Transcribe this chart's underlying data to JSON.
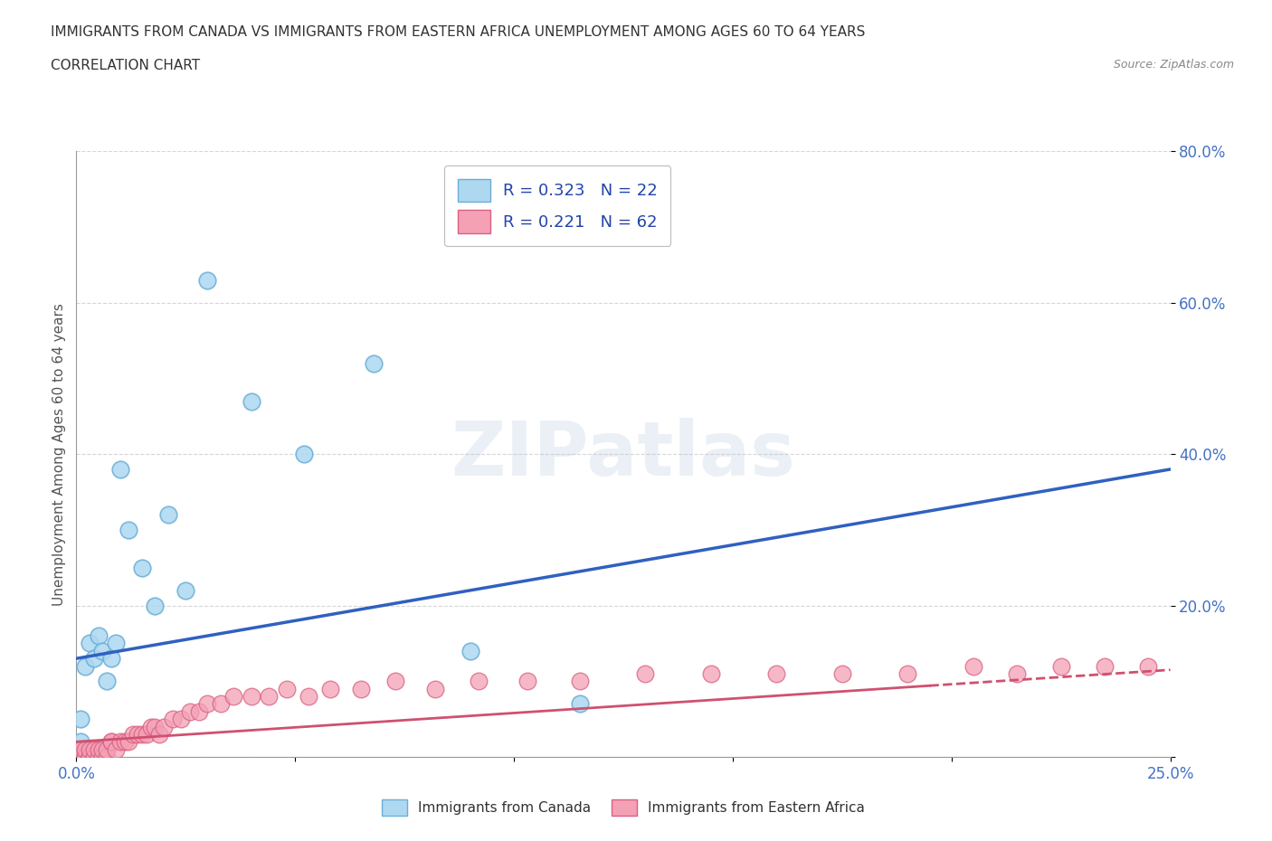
{
  "title_line1": "IMMIGRANTS FROM CANADA VS IMMIGRANTS FROM EASTERN AFRICA UNEMPLOYMENT AMONG AGES 60 TO 64 YEARS",
  "title_line2": "CORRELATION CHART",
  "source_text": "Source: ZipAtlas.com",
  "ylabel": "Unemployment Among Ages 60 to 64 years",
  "xlim": [
    0.0,
    0.25
  ],
  "ylim": [
    0.0,
    0.8
  ],
  "xticks": [
    0.0,
    0.05,
    0.1,
    0.15,
    0.2,
    0.25
  ],
  "yticks": [
    0.0,
    0.2,
    0.4,
    0.6,
    0.8
  ],
  "xticklabels": [
    "0.0%",
    "",
    "",
    "",
    "",
    "25.0%"
  ],
  "yticklabels": [
    "",
    "20.0%",
    "40.0%",
    "60.0%",
    "80.0%"
  ],
  "canada_color": "#ADD8F0",
  "canada_edge_color": "#6aafd6",
  "eastern_africa_color": "#F4A0B5",
  "eastern_africa_edge_color": "#d96080",
  "canada_R": 0.323,
  "canada_N": 22,
  "eastern_africa_R": 0.221,
  "eastern_africa_N": 62,
  "canada_line_color": "#3060C0",
  "eastern_africa_line_color": "#D05070",
  "canada_scatter_x": [
    0.001,
    0.001,
    0.002,
    0.003,
    0.004,
    0.005,
    0.006,
    0.007,
    0.008,
    0.009,
    0.01,
    0.012,
    0.015,
    0.018,
    0.021,
    0.025,
    0.03,
    0.04,
    0.052,
    0.068,
    0.09,
    0.115
  ],
  "canada_scatter_y": [
    0.02,
    0.05,
    0.12,
    0.15,
    0.13,
    0.16,
    0.14,
    0.1,
    0.13,
    0.15,
    0.38,
    0.3,
    0.25,
    0.2,
    0.32,
    0.22,
    0.63,
    0.47,
    0.4,
    0.52,
    0.14,
    0.07
  ],
  "eastern_africa_scatter_x": [
    0.0,
    0.0,
    0.0,
    0.001,
    0.001,
    0.001,
    0.002,
    0.002,
    0.002,
    0.003,
    0.003,
    0.003,
    0.004,
    0.004,
    0.005,
    0.005,
    0.006,
    0.006,
    0.007,
    0.007,
    0.008,
    0.008,
    0.009,
    0.01,
    0.011,
    0.012,
    0.013,
    0.014,
    0.015,
    0.016,
    0.017,
    0.018,
    0.019,
    0.02,
    0.022,
    0.024,
    0.026,
    0.028,
    0.03,
    0.033,
    0.036,
    0.04,
    0.044,
    0.048,
    0.053,
    0.058,
    0.065,
    0.073,
    0.082,
    0.092,
    0.103,
    0.115,
    0.13,
    0.145,
    0.16,
    0.175,
    0.19,
    0.205,
    0.215,
    0.225,
    0.235,
    0.245
  ],
  "eastern_africa_scatter_y": [
    0.0,
    0.0,
    0.01,
    0.0,
    0.0,
    0.01,
    0.0,
    0.0,
    0.01,
    0.0,
    0.0,
    0.01,
    0.0,
    0.01,
    0.0,
    0.01,
    0.0,
    0.01,
    0.0,
    0.01,
    0.02,
    0.02,
    0.01,
    0.02,
    0.02,
    0.02,
    0.03,
    0.03,
    0.03,
    0.03,
    0.04,
    0.04,
    0.03,
    0.04,
    0.05,
    0.05,
    0.06,
    0.06,
    0.07,
    0.07,
    0.08,
    0.08,
    0.08,
    0.09,
    0.08,
    0.09,
    0.09,
    0.1,
    0.09,
    0.1,
    0.1,
    0.1,
    0.11,
    0.11,
    0.11,
    0.11,
    0.11,
    0.12,
    0.11,
    0.12,
    0.12,
    0.12
  ],
  "canada_line_x0": 0.0,
  "canada_line_y0": 0.13,
  "canada_line_x1": 0.25,
  "canada_line_y1": 0.38,
  "ea_line_x0": 0.0,
  "ea_line_y0": 0.02,
  "ea_line_x1": 0.25,
  "ea_line_y1": 0.115,
  "watermark_text": "ZIPatlas",
  "background_color": "#ffffff",
  "grid_color": "#cccccc"
}
